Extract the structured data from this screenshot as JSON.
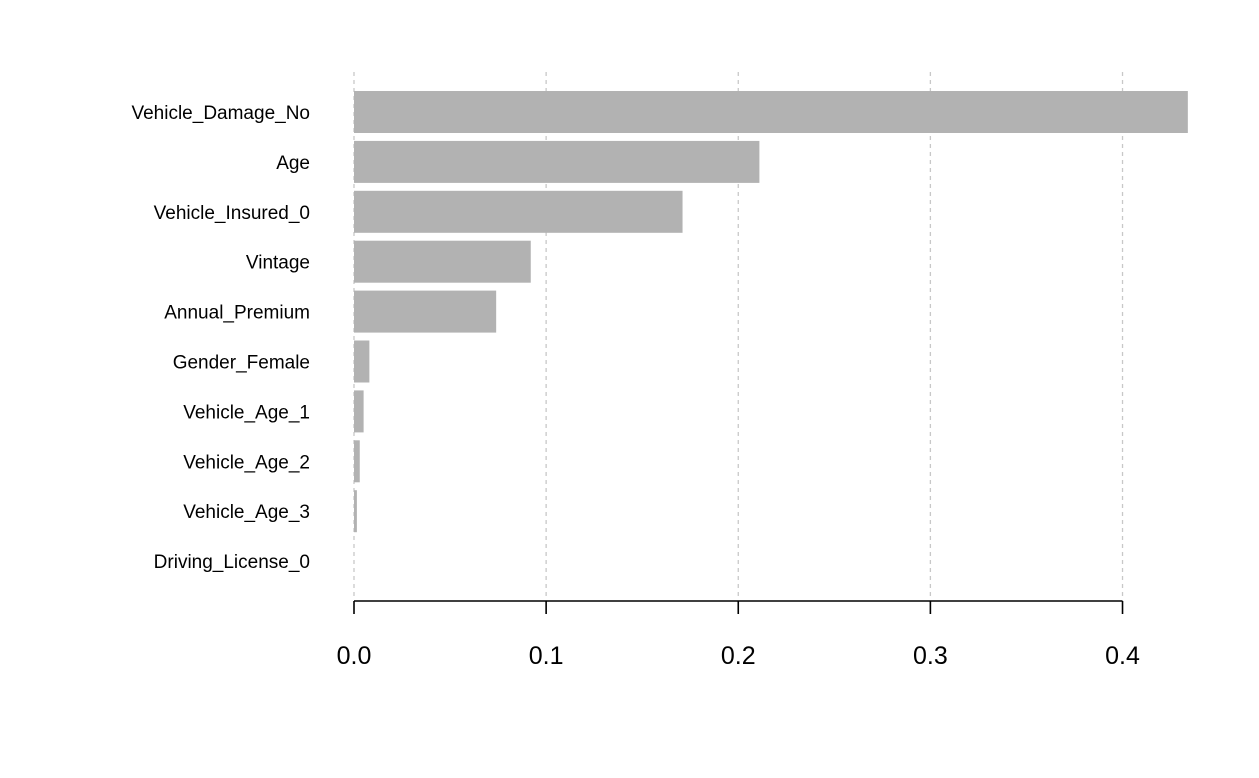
{
  "chart_data": {
    "type": "bar",
    "orientation": "horizontal",
    "categories": [
      "Vehicle_Damage_No",
      "Age",
      "Vehicle_Insured_0",
      "Vintage",
      "Annual_Premium",
      "Gender_Female",
      "Vehicle_Age_1",
      "Vehicle_Age_2",
      "Vehicle_Age_3",
      "Driving_License_0"
    ],
    "values": [
      0.434,
      0.211,
      0.171,
      0.092,
      0.074,
      0.008,
      0.005,
      0.003,
      0.0015,
      0.0
    ],
    "xlim": [
      0,
      0.434
    ],
    "x_ticks": [
      "0.0",
      "0.1",
      "0.2",
      "0.3",
      "0.4"
    ],
    "x_tick_values": [
      0,
      0.1,
      0.2,
      0.3,
      0.4
    ],
    "grid": "vertical dashed",
    "bar_color": "#b2b2b2",
    "grid_color": "#c8c8c8",
    "axis_color": "#000000"
  }
}
